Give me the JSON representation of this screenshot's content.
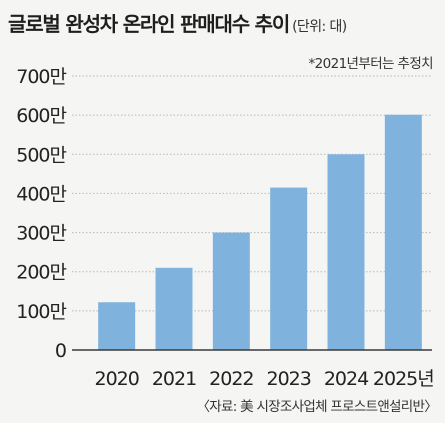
{
  "header": {
    "title": "글로벌 완성차 온라인 판매대수 추이",
    "unit": "(단위: 대)",
    "note": "*2021년부터는 추정치"
  },
  "footer": {
    "source": "〈자료: 美 시장조사업체 프로스트앤설리반〉"
  },
  "colors": {
    "bar": "#7fb3dd",
    "grid": "#b9b9b9",
    "axis": "#3a3a3a",
    "text": "#222222"
  },
  "chart_data": {
    "type": "bar",
    "categories": [
      "2020",
      "2021",
      "2022",
      "2023",
      "2024",
      "2025년"
    ],
    "values": [
      1220000,
      2100000,
      3000000,
      4150000,
      5000000,
      6010000
    ],
    "ylim": [
      0,
      7000000
    ],
    "yticks": [
      0,
      1000000,
      2000000,
      3000000,
      4000000,
      5000000,
      6000000,
      7000000
    ],
    "ytick_labels": [
      "0",
      "100만",
      "200만",
      "300만",
      "400만",
      "500만",
      "600만",
      "700만"
    ],
    "grid": true,
    "title": "글로벌 완성차 온라인 판매대수 추이",
    "xlabel": "",
    "ylabel": ""
  }
}
